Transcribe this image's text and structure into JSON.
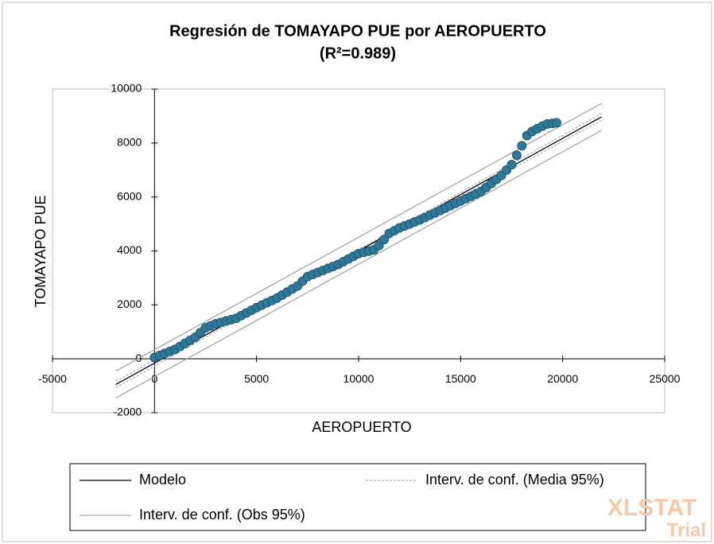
{
  "chart_data": {
    "type": "scatter",
    "title": "Regresión de TOMAYAPO PUE por AEROPUERTO",
    "subtitle": "(R²=0.989)",
    "x_label": "AEROPUERTO",
    "y_label": "TOMAYAPO PUE",
    "watermark": [
      "XLSTAT",
      "Trial"
    ],
    "xlim": [
      -5000,
      25000
    ],
    "xticks": [
      -5000,
      0,
      5000,
      10000,
      15000,
      20000,
      25000
    ],
    "ylim": [
      -2000,
      10000
    ],
    "yticks": [
      -2000,
      0,
      2000,
      4000,
      6000,
      8000,
      10000
    ],
    "legend": "bottom",
    "series": [
      {
        "color": "#2e7898",
        "kind": "points",
        "x": [
          0,
          250,
          500,
          750,
          1000,
          1250,
          1500,
          1750,
          2000,
          2250,
          2500,
          2750,
          3000,
          3250,
          3500,
          3750,
          4000,
          4250,
          4500,
          4750,
          5000,
          5250,
          5500,
          5750,
          6000,
          6250,
          6500,
          6750,
          7000,
          7250,
          7500,
          7750,
          8000,
          8250,
          8500,
          8750,
          9000,
          9250,
          9500,
          9750,
          10000,
          10250,
          10500,
          10750,
          11000,
          11250,
          11500,
          11750,
          12000,
          12250,
          12500,
          12750,
          13000,
          13250,
          13500,
          13750,
          14000,
          14250,
          14500,
          14750,
          15000,
          15250,
          15500,
          15750,
          16000,
          16250,
          16500,
          16750,
          17000,
          17250,
          17500,
          17750,
          18000,
          18250,
          18500,
          18750,
          19000,
          19250,
          19500,
          19700
        ],
        "values": [
          50,
          125,
          200,
          275,
          350,
          462,
          575,
          688,
          800,
          975,
          1150,
          1225,
          1300,
          1350,
          1400,
          1450,
          1500,
          1600,
          1700,
          1800,
          1900,
          1988,
          2075,
          2162,
          2250,
          2362,
          2475,
          2588,
          2700,
          2875,
          3050,
          3125,
          3200,
          3275,
          3350,
          3425,
          3500,
          3600,
          3700,
          3800,
          3900,
          3947,
          3994,
          4041,
          4200,
          4425,
          4650,
          4750,
          4850,
          4925,
          5000,
          5075,
          5150,
          5238,
          5325,
          5412,
          5500,
          5588,
          5675,
          5762,
          5850,
          5938,
          6025,
          6112,
          6200,
          6350,
          6500,
          6650,
          6800,
          7000,
          7200,
          7550,
          7900,
          8275,
          8430,
          8530,
          8625,
          8705,
          8730,
          8750
        ]
      },
      {
        "name": "Modelo",
        "color": "#000000",
        "kind": "line",
        "x": [
          -1900,
          21900
        ],
        "values": [
          -952,
          8966
        ]
      },
      {
        "name": "Interv. de conf. (Media 95%)",
        "color": "#b0b0b0",
        "kind": "band",
        "dashed": true,
        "x": [
          -1900,
          9000,
          21900
        ],
        "upper": [
          -830,
          3630,
          9090
        ],
        "lower": [
          -1070,
          3550,
          8840
        ]
      },
      {
        "name": "Interv. de conf. (Obs 95%)",
        "color": "#a6a6a6",
        "kind": "band",
        "dashed": false,
        "x": [
          -1900,
          21900
        ],
        "upper": [
          -452,
          9466
        ],
        "lower": [
          -1452,
          8466
        ]
      }
    ]
  }
}
